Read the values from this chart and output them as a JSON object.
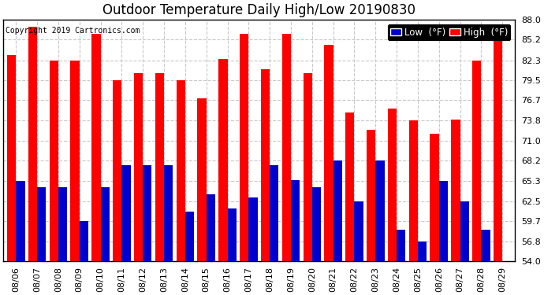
{
  "title": "Outdoor Temperature Daily High/Low 20190830",
  "copyright": "Copyright 2019 Cartronics.com",
  "legend_low": "Low  (°F)",
  "legend_high": "High  (°F)",
  "dates": [
    "08/06",
    "08/07",
    "08/08",
    "08/09",
    "08/10",
    "08/11",
    "08/12",
    "08/13",
    "08/14",
    "08/15",
    "08/16",
    "08/17",
    "08/18",
    "08/19",
    "08/20",
    "08/21",
    "08/22",
    "08/23",
    "08/24",
    "08/25",
    "08/26",
    "08/27",
    "08/28",
    "08/29"
  ],
  "high": [
    83.0,
    87.0,
    82.3,
    82.3,
    86.0,
    79.5,
    80.5,
    80.5,
    79.5,
    77.0,
    82.5,
    86.0,
    81.0,
    86.0,
    80.5,
    84.5,
    75.0,
    72.5,
    75.5,
    73.8,
    72.0,
    74.0,
    82.3,
    85.2
  ],
  "low": [
    65.3,
    64.5,
    64.5,
    59.7,
    64.5,
    67.5,
    67.5,
    67.5,
    61.0,
    63.5,
    61.5,
    63.0,
    67.5,
    65.5,
    64.5,
    68.2,
    62.5,
    68.2,
    58.5,
    56.8,
    65.3,
    62.5,
    58.5,
    54.0
  ],
  "ylim_min": 54.0,
  "ylim_max": 88.0,
  "yticks": [
    54.0,
    56.8,
    59.7,
    62.5,
    65.3,
    68.2,
    71.0,
    73.8,
    76.7,
    79.5,
    82.3,
    85.2,
    88.0
  ],
  "high_color": "#ff0000",
  "low_color": "#0000cc",
  "bg_color": "#ffffff",
  "grid_color": "#c8c8c8",
  "bar_width": 0.42,
  "title_fontsize": 12,
  "tick_fontsize": 8,
  "legend_fontsize": 8.5
}
